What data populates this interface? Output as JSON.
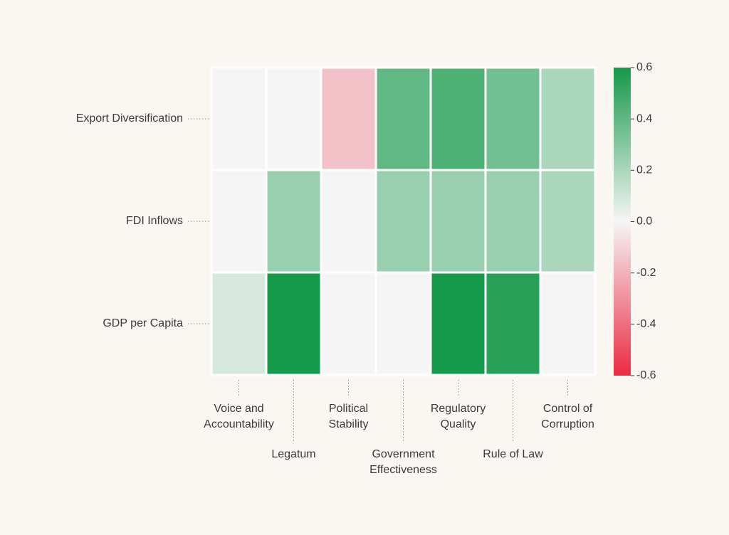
{
  "chart_data": {
    "type": "heatmap",
    "rows": [
      "Export Diversification",
      "FDI Inflows",
      "GDP per Capita"
    ],
    "columns": [
      [
        "Voice and",
        "Accountability"
      ],
      [
        "Legatum"
      ],
      [
        "Political",
        "Stability"
      ],
      [
        "Government",
        "Effectiveness"
      ],
      [
        "Regulatory",
        "Quality"
      ],
      [
        "Rule of Law"
      ],
      [
        "Control of",
        "Corruption"
      ]
    ],
    "values": [
      [
        0.0,
        0.0,
        -0.15,
        0.4,
        0.45,
        0.35,
        0.2
      ],
      [
        0.0,
        0.25,
        0.0,
        0.25,
        0.25,
        0.25,
        0.2
      ],
      [
        0.08,
        0.6,
        0.0,
        0.0,
        0.6,
        0.55,
        0.0
      ]
    ],
    "colorbar": {
      "min": -0.6,
      "max": 0.6,
      "ticks": [
        0.6,
        0.4,
        0.2,
        0.0,
        -0.2,
        -0.4,
        -0.6
      ],
      "tick_labels": [
        "0.6",
        "0.4",
        "0.2",
        "0.0",
        "-0.2",
        "-0.4",
        "-0.6"
      ],
      "low_color": "#ec2a43",
      "mid_color": "#f5f5f5",
      "high_color": "#15994a"
    },
    "title": "",
    "xlabel": "",
    "ylabel": ""
  }
}
